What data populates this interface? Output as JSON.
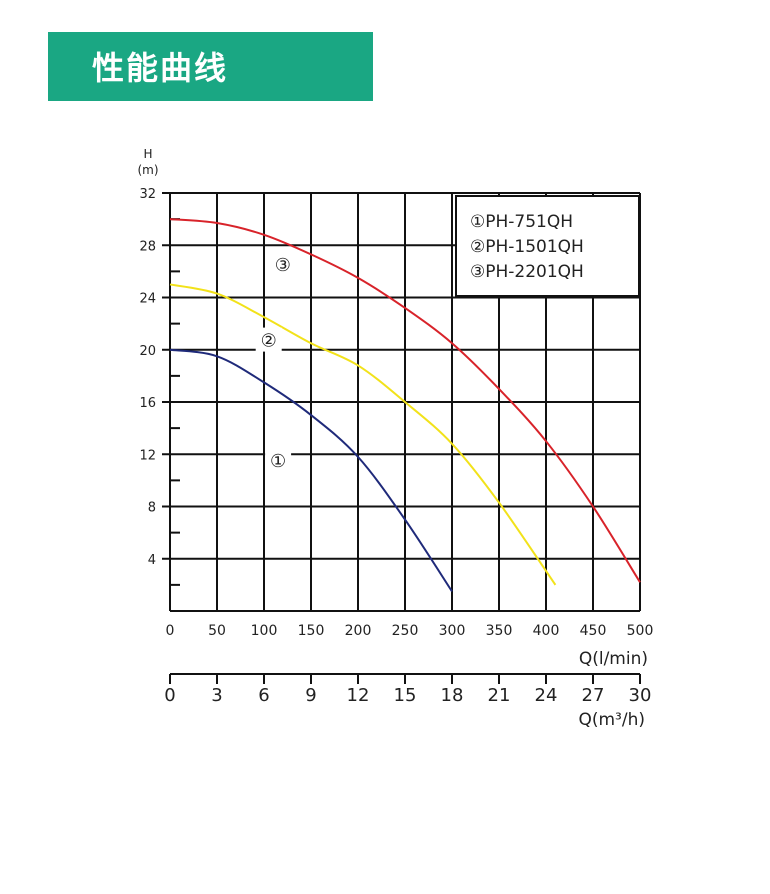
{
  "header": {
    "title": "性能曲线"
  },
  "chart_data": {
    "type": "line",
    "y_axis": {
      "unit_top": "H",
      "unit_bottom": "(m)",
      "ticks": [
        "32",
        "28",
        "24",
        "20",
        "16",
        "12",
        "8",
        "4"
      ],
      "ylim": [
        0,
        32
      ]
    },
    "x_axis_flow": {
      "label": "Q(l/min)",
      "ticks": [
        "0",
        "50",
        "100",
        "150",
        "200",
        "250",
        "300",
        "350",
        "400",
        "450",
        "500"
      ],
      "xlim": [
        0,
        500
      ]
    },
    "x_axis_m3h": {
      "label": "Q(m³/h)",
      "ticks": [
        "0",
        "3",
        "6",
        "9",
        "12",
        "15",
        "18",
        "21",
        "24",
        "27",
        "30"
      ],
      "xlim": [
        0,
        30
      ]
    },
    "grid": true,
    "legend_position": "top-right",
    "series": [
      {
        "name": "①PH-751QH",
        "marker": "①",
        "color": "#1f2a7a",
        "points": [
          [
            0,
            20
          ],
          [
            50,
            19.5
          ],
          [
            100,
            17.5
          ],
          [
            150,
            15
          ],
          [
            200,
            11.8
          ],
          [
            250,
            7
          ],
          [
            300,
            1.5
          ]
        ]
      },
      {
        "name": "②PH-1501QH",
        "marker": "②",
        "color": "#f2e21a",
        "points": [
          [
            0,
            25
          ],
          [
            50,
            24.3
          ],
          [
            100,
            22.5
          ],
          [
            150,
            20.5
          ],
          [
            200,
            18.8
          ],
          [
            250,
            16
          ],
          [
            300,
            12.8
          ],
          [
            350,
            8.3
          ],
          [
            410,
            2
          ]
        ]
      },
      {
        "name": "③PH-2201QH",
        "marker": "③",
        "color": "#d8232a",
        "points": [
          [
            0,
            30
          ],
          [
            50,
            29.7
          ],
          [
            100,
            28.8
          ],
          [
            150,
            27.3
          ],
          [
            200,
            25.5
          ],
          [
            250,
            23.2
          ],
          [
            300,
            20.5
          ],
          [
            350,
            17
          ],
          [
            400,
            13
          ],
          [
            450,
            8
          ],
          [
            500,
            2.2
          ]
        ]
      }
    ]
  }
}
